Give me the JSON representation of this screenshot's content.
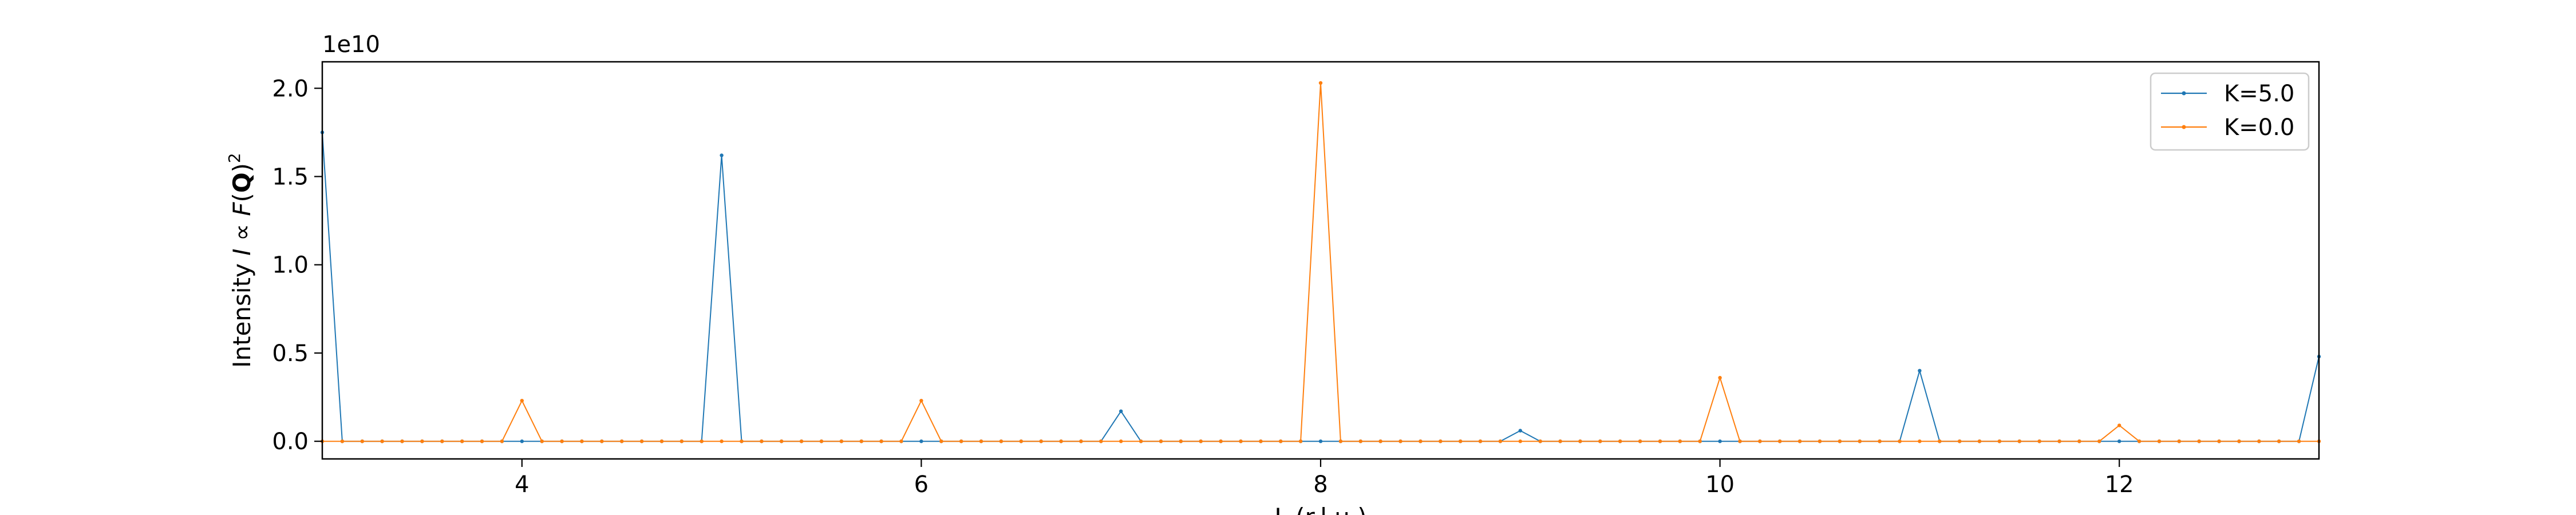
{
  "chart_data": {
    "type": "line",
    "xlabel": "L (r.l.u.)",
    "ylabel": "Intensity I ∝ F(Q)²",
    "ylabel_parts": {
      "prefix": "Intensity ",
      "italic_I": "I",
      "propto": " ∝ ",
      "italic_F": "F",
      "open_paren": "(",
      "bold_Q": "Q",
      "close_paren": ")",
      "superscript_2": "2"
    },
    "offset_text": "1e10",
    "xlim": [
      3.0,
      13.0
    ],
    "ylim": [
      -0.1,
      2.15
    ],
    "xticks": [
      4,
      6,
      8,
      10,
      12
    ],
    "xtick_labels": [
      "4",
      "6",
      "8",
      "10",
      "12"
    ],
    "yticks": [
      0.0,
      0.5,
      1.0,
      1.5,
      2.0
    ],
    "ytick_labels": [
      "0.0",
      "0.5",
      "1.0",
      "1.5",
      "2.0"
    ],
    "x_start": 3.0,
    "x_step": 0.1,
    "n_points": 101,
    "legend_position": "upper right",
    "grid": false,
    "series": [
      {
        "name": "K=5.0",
        "color": "#1f77b4",
        "peaks": [
          {
            "L": 3,
            "value": 1.75
          },
          {
            "L": 5,
            "value": 1.62
          },
          {
            "L": 7,
            "value": 0.17
          },
          {
            "L": 9,
            "value": 0.06
          },
          {
            "L": 11,
            "value": 0.4
          },
          {
            "L": 13,
            "value": 0.48
          }
        ]
      },
      {
        "name": "K=0.0",
        "color": "#ff7f0e",
        "peaks": [
          {
            "L": 4,
            "value": 0.23
          },
          {
            "L": 6,
            "value": 0.23
          },
          {
            "L": 8,
            "value": 2.03
          },
          {
            "L": 10,
            "value": 0.36
          },
          {
            "L": 12,
            "value": 0.09
          }
        ]
      }
    ]
  }
}
